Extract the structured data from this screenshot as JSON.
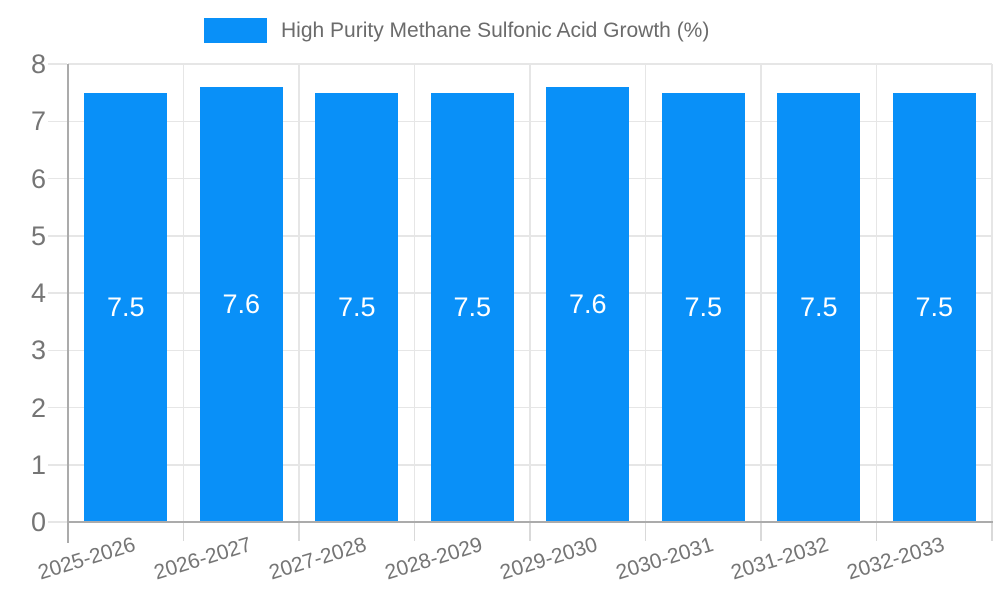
{
  "chart_data": {
    "type": "bar",
    "title": "High Purity Methane Sulfonic Acid Growth (%)",
    "categories": [
      "2025-2026",
      "2026-2027",
      "2027-2028",
      "2028-2029",
      "2029-2030",
      "2030-2031",
      "2031-2032",
      "2032-2033"
    ],
    "values": [
      7.5,
      7.6,
      7.5,
      7.5,
      7.6,
      7.5,
      7.5,
      7.5
    ],
    "value_labels": [
      "7.5",
      "7.6",
      "7.5",
      "7.5",
      "7.6",
      "7.5",
      "7.5",
      "7.5"
    ],
    "xlabel": "",
    "ylabel": "",
    "ylim": [
      0,
      8
    ],
    "yticks": [
      0,
      1,
      2,
      3,
      4,
      5,
      6,
      7,
      8
    ],
    "grid": true,
    "legend_position": "top",
    "x_tick_rotation_deg": -17,
    "colors": {
      "bar": "#0990F8",
      "grid": "#E6E6E6",
      "axis": "#ABABAB",
      "tick": "#D9D9D9",
      "tick_text": "#757575",
      "title_text": "#6B6B6B",
      "value_text": "#FFFFFF",
      "background": "#FFFFFF"
    }
  }
}
